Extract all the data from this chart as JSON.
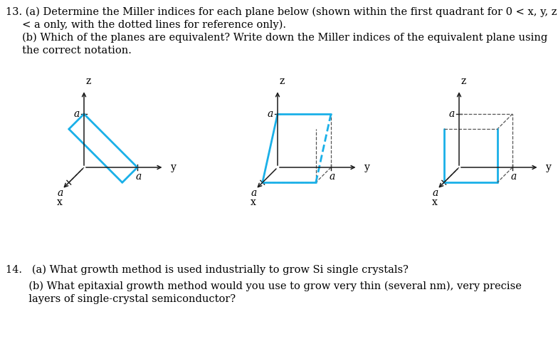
{
  "bg_color": "#ffffff",
  "cyan": "#1ab0e8",
  "black": "#1a1a1a",
  "gray": "#555555",
  "fs_main": 10.5,
  "fs_label": 10,
  "fs_axis": 9,
  "line1": "13. (a) Determine the Miller indices for each plane below (shown within the first quadrant for 0 < x, y, z",
  "line2": "     < a only, with the dotted lines for reference only).",
  "line3": "     (b) Which of the planes are equivalent? Write down the Miller indices of the equivalent plane using",
  "line4": "     the correct notation.",
  "q14a": "14.   (a) What growth method is used industrially to grow Si single crystals?",
  "q14b": "       (b) What epitaxial growth method would you use to grow very thin (several nm), very precise",
  "q14c": "       layers of single-crystal semiconductor?"
}
